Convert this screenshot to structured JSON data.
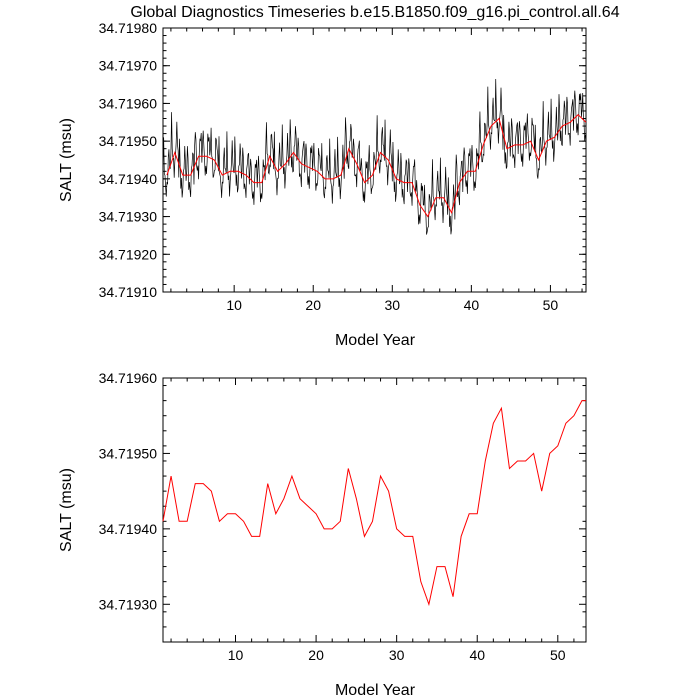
{
  "figure_title": "Global Diagnostics Timeseries b.e15.B1850.f09_g16.pi_control.all.64",
  "chart_data": [
    {
      "type": "line",
      "ylabel": "SALT (msu)",
      "xlabel": "Model Year",
      "xlim": [
        1,
        54.5
      ],
      "ylim": [
        34.7191,
        34.7198
      ],
      "xticks": [
        10,
        20,
        30,
        40,
        50
      ],
      "yticks": [
        {
          "v": 34.7191,
          "label": "34.71910"
        },
        {
          "v": 34.7192,
          "label": "34.71920"
        },
        {
          "v": 34.7193,
          "label": "34.71930"
        },
        {
          "v": 34.7194,
          "label": "34.71940"
        },
        {
          "v": 34.7195,
          "label": "34.71950"
        },
        {
          "v": 34.7196,
          "label": "34.71960"
        },
        {
          "v": 34.7197,
          "label": "34.71970"
        },
        {
          "v": 34.7198,
          "label": "34.71980"
        }
      ],
      "series": [
        {
          "name": "monthly",
          "color": "#000000",
          "kind": "monthly",
          "annual": [
            34.71941,
            34.71947,
            34.71941,
            34.71941,
            34.71946,
            34.71946,
            34.71945,
            34.71941,
            34.71942,
            34.71942,
            34.71941,
            34.71939,
            34.71939,
            34.71946,
            34.71942,
            34.71944,
            34.71947,
            34.71944,
            34.71943,
            34.71942,
            34.7194,
            34.7194,
            34.71941,
            34.71948,
            34.71944,
            34.71939,
            34.71941,
            34.71947,
            34.71945,
            34.7194,
            34.71939,
            34.71939,
            34.71933,
            34.7193,
            34.71935,
            34.71935,
            34.71931,
            34.71939,
            34.71942,
            34.71942,
            34.71949,
            34.71954,
            34.71956,
            34.71948,
            34.71949,
            34.71949,
            34.7195,
            34.71945,
            34.7195,
            34.71951,
            34.71954,
            34.71955,
            34.71957,
            34.71955
          ]
        },
        {
          "name": "annual",
          "color": "#ff0000",
          "x": [
            1.5,
            2.5,
            3.5,
            4.5,
            5.5,
            6.5,
            7.5,
            8.5,
            9.5,
            10.5,
            11.5,
            12.5,
            13.5,
            14.5,
            15.5,
            16.5,
            17.5,
            18.5,
            19.5,
            20.5,
            21.5,
            22.5,
            23.5,
            24.5,
            25.5,
            26.5,
            27.5,
            28.5,
            29.5,
            30.5,
            31.5,
            32.5,
            33.5,
            34.5,
            35.5,
            36.5,
            37.5,
            38.5,
            39.5,
            40.5,
            41.5,
            42.5,
            43.5,
            44.5,
            45.5,
            46.5,
            47.5,
            48.5,
            49.5,
            50.5,
            51.5,
            52.5,
            53.5,
            54.5
          ],
          "values": [
            34.71941,
            34.71947,
            34.71941,
            34.71941,
            34.71946,
            34.71946,
            34.71945,
            34.71941,
            34.71942,
            34.71942,
            34.71941,
            34.71939,
            34.71939,
            34.71946,
            34.71942,
            34.71944,
            34.71947,
            34.71944,
            34.71943,
            34.71942,
            34.7194,
            34.7194,
            34.71941,
            34.71948,
            34.71944,
            34.71939,
            34.71941,
            34.71947,
            34.71945,
            34.7194,
            34.71939,
            34.71939,
            34.71933,
            34.7193,
            34.71935,
            34.71935,
            34.71931,
            34.71939,
            34.71942,
            34.71942,
            34.71949,
            34.71954,
            34.71956,
            34.71948,
            34.71949,
            34.71949,
            34.7195,
            34.71945,
            34.7195,
            34.71951,
            34.71954,
            34.71955,
            34.71957,
            34.71955
          ]
        }
      ]
    },
    {
      "type": "line",
      "ylabel": "SALT (msu)",
      "xlabel": "Model Year",
      "xlim": [
        1,
        53.5
      ],
      "ylim": [
        34.71925,
        34.7196
      ],
      "xticks": [
        10,
        20,
        30,
        40,
        50
      ],
      "yticks": [
        {
          "v": 34.7193,
          "label": "34.71930"
        },
        {
          "v": 34.7194,
          "label": "34.71940"
        },
        {
          "v": 34.7195,
          "label": "34.71950"
        },
        {
          "v": 34.7196,
          "label": "34.71960"
        }
      ],
      "series": [
        {
          "name": "annual",
          "color": "#ff0000",
          "x": [
            1,
            2,
            3,
            4,
            5,
            6,
            7,
            8,
            9,
            10,
            11,
            12,
            13,
            14,
            15,
            16,
            17,
            18,
            19,
            20,
            21,
            22,
            23,
            24,
            25,
            26,
            27,
            28,
            29,
            30,
            31,
            32,
            33,
            34,
            35,
            36,
            37,
            38,
            39,
            40,
            41,
            42,
            43,
            44,
            45,
            46,
            47,
            48,
            49,
            50,
            51,
            52,
            53,
            53.5
          ],
          "values": [
            34.71941,
            34.71947,
            34.71941,
            34.71941,
            34.71946,
            34.71946,
            34.71945,
            34.71941,
            34.71942,
            34.71942,
            34.71941,
            34.71939,
            34.71939,
            34.71946,
            34.71942,
            34.71944,
            34.71947,
            34.71944,
            34.71943,
            34.71942,
            34.7194,
            34.7194,
            34.71941,
            34.71948,
            34.71944,
            34.71939,
            34.71941,
            34.71947,
            34.71945,
            34.7194,
            34.71939,
            34.71939,
            34.71933,
            34.7193,
            34.71935,
            34.71935,
            34.71931,
            34.71939,
            34.71942,
            34.71942,
            34.71949,
            34.71954,
            34.71956,
            34.71948,
            34.71949,
            34.71949,
            34.7195,
            34.71945,
            34.7195,
            34.71951,
            34.71954,
            34.71955,
            34.71957,
            34.71957
          ]
        }
      ]
    }
  ]
}
